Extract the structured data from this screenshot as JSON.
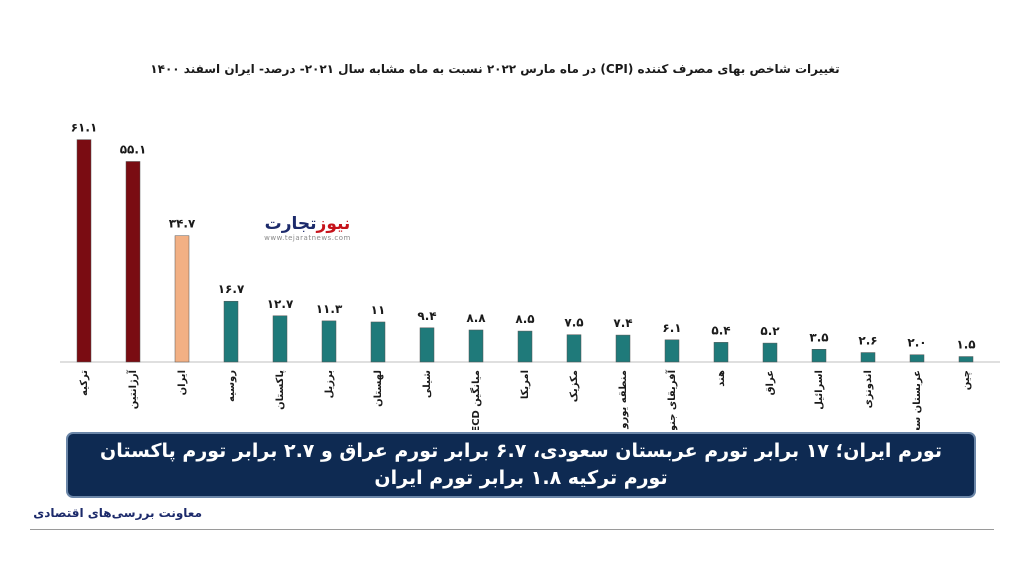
{
  "chart_data": {
    "type": "bar",
    "title": "تغییرات شاخص بهای مصرف کننده (CPI) در ماه مارس ۲۰۲۲ نسبت به ماه مشابه سال ۲۰۲۱- درصد- ایران اسفند ۱۴۰۰",
    "categories": [
      "ترکیه",
      "آرژانتین",
      "ایران",
      "روسیه",
      "پاکستان",
      "برزیل",
      "لهستان",
      "شیلی",
      "OECD میانگین",
      "امریکا",
      "مکزیک",
      "منطقه یورو (۱۹)",
      "آفریقای جنوبی",
      "هند",
      "عراق",
      "اسرائیل",
      "اندونزی",
      "عربستان سعودی",
      "چین"
    ],
    "values": [
      61.1,
      55.1,
      34.7,
      16.7,
      12.7,
      11.3,
      11,
      9.4,
      8.8,
      8.5,
      7.5,
      7.4,
      6.1,
      5.4,
      5.2,
      3.5,
      2.6,
      2.0,
      1.5
    ],
    "value_labels": [
      "۶۱.۱",
      "۵۵.۱",
      "۳۴.۷",
      "۱۶.۷",
      "۱۲.۷",
      "۱۱.۳",
      "۱۱",
      "۹.۴",
      "۸.۸",
      "۸.۵",
      "۷.۵",
      "۷.۴",
      "۶.۱",
      "۵.۴",
      "۵.۲",
      "۳.۵",
      "۲.۶",
      "۲.۰",
      "۱.۵"
    ],
    "colors": [
      "#7a0c12",
      "#7a0c12",
      "#f2b084",
      "#1f7a7a",
      "#1f7a7a",
      "#1f7a7a",
      "#1f7a7a",
      "#1f7a7a",
      "#1f7a7a",
      "#1f7a7a",
      "#1f7a7a",
      "#1f7a7a",
      "#1f7a7a",
      "#1f7a7a",
      "#1f7a7a",
      "#1f7a7a",
      "#1f7a7a",
      "#1f7a7a",
      "#1f7a7a"
    ],
    "xlabel": "",
    "ylabel": "",
    "ylim": [
      0,
      65
    ],
    "grid": false,
    "legend": false
  },
  "watermark": {
    "brand_red": "نیوز",
    "brand_blue": "تجارت",
    "url": "www.tejaratnews.com"
  },
  "banner": {
    "line1": "تورم ایران؛ ۱۷ برابر تورم عربستان سعودی، ۶.۷ برابر تورم عراق و ۲.۷ برابر تورم پاکستان",
    "line2": "تورم ترکیه ۱.۸ برابر تورم ایران"
  },
  "footer": {
    "source": "معاونت بررسی‌های اقتصادی"
  }
}
